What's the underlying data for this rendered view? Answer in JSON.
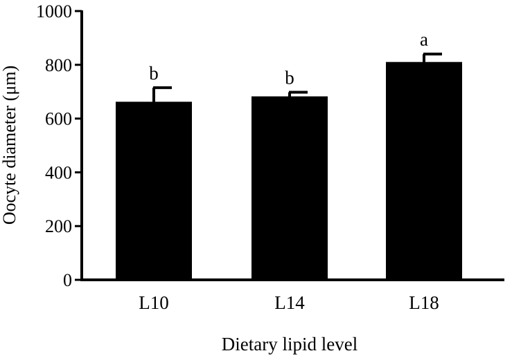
{
  "chart_data": {
    "type": "bar",
    "title": "",
    "xlabel": "Dietary lipid level",
    "ylabel": "Oocyte diameter (μm)",
    "categories": [
      "L10",
      "L14",
      "L18"
    ],
    "values": [
      660,
      680,
      808
    ],
    "errors": [
      55,
      18,
      32
    ],
    "significance_letters": [
      "b",
      "b",
      "a"
    ],
    "ylim": [
      0,
      1000
    ],
    "yticks": [
      0,
      200,
      400,
      600,
      800,
      1000
    ],
    "bar_color": "#000000",
    "grid": false,
    "legend": "none"
  }
}
